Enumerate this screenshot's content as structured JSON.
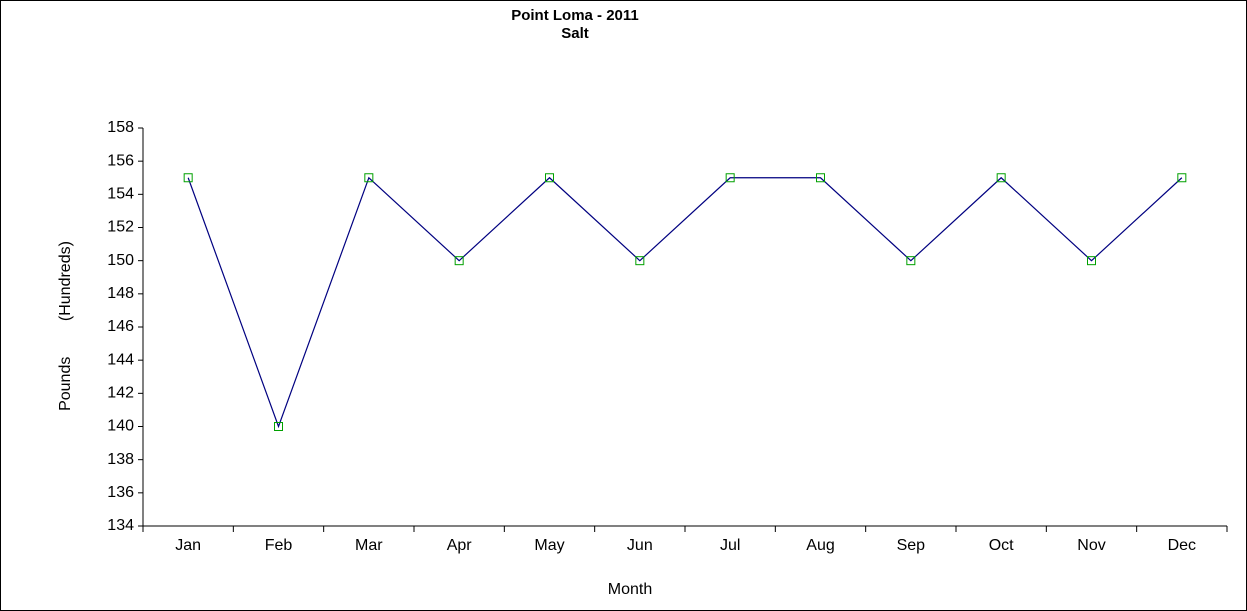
{
  "chart_data": {
    "type": "line",
    "title": "Point Loma - 2011",
    "subtitle": "Salt",
    "x_label": "Month",
    "y_label": "Pounds        (Hundreds)",
    "categories": [
      "Jan",
      "Feb",
      "Mar",
      "Apr",
      "May",
      "Jun",
      "Jul",
      "Aug",
      "Sep",
      "Oct",
      "Nov",
      "Dec"
    ],
    "series": [
      {
        "name": "Salt",
        "color": "#000080",
        "marker_color": "#00a000",
        "values": [
          155,
          140,
          155,
          150,
          155,
          150,
          155,
          155,
          150,
          155,
          150,
          155
        ]
      }
    ],
    "ylim": [
      134,
      158
    ],
    "yticks": [
      134,
      136,
      138,
      140,
      142,
      144,
      146,
      148,
      150,
      152,
      154,
      156,
      158
    ],
    "grid": false
  }
}
